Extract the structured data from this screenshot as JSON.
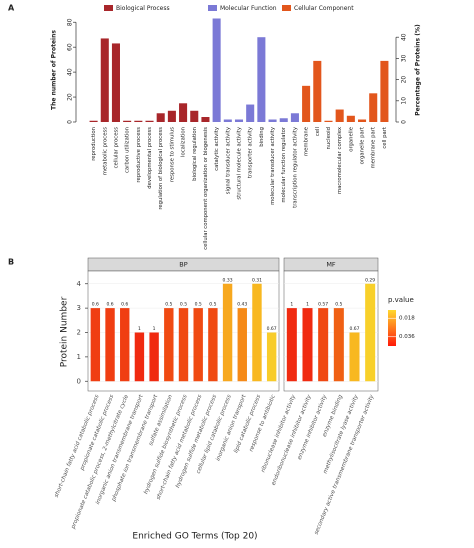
{
  "chart_data": [
    {
      "type": "bar",
      "label": "A",
      "ylabel": "The number of Proteins",
      "y2label": "Percentage of Proteins (%)",
      "categories": [
        "reproduction",
        "metabolic process",
        "cellular process",
        "carbon utilization",
        "reproductive process",
        "developmental process",
        "regulation of biological process",
        "response to stimulus",
        "localization",
        "biological regulation",
        "cellular component organization or biogenesis",
        "catalytic activity",
        "signal transducer activity",
        "structural molecule activity",
        "transporter activity",
        "binding",
        "molecular transducer activity",
        "molecular function regulator",
        "transcription regulator activity",
        "membrane",
        "cell",
        "nucleoid",
        "macromolecular complex",
        "organelle",
        "organelle part",
        "membrane part",
        "cell part"
      ],
      "series": [
        {
          "name": "Biological Process",
          "color": "#a8262a",
          "values": [
            1,
            67,
            63,
            1,
            1,
            1,
            7,
            9,
            15,
            9,
            4,
            null,
            null,
            null,
            null,
            null,
            null,
            null,
            null,
            null,
            null,
            null,
            null,
            null,
            null,
            null,
            null
          ]
        },
        {
          "name": "Molecular Function",
          "color": "#7b79d6",
          "values": [
            null,
            null,
            null,
            null,
            null,
            null,
            null,
            null,
            null,
            null,
            null,
            83,
            2,
            2,
            14,
            68,
            2,
            3,
            7,
            null,
            null,
            null,
            null,
            null,
            null,
            null,
            null
          ]
        },
        {
          "name": "Cellular Component",
          "color": "#e2561c",
          "values": [
            null,
            null,
            null,
            null,
            null,
            null,
            null,
            null,
            null,
            null,
            null,
            null,
            null,
            null,
            null,
            null,
            null,
            null,
            null,
            29,
            49,
            1,
            10,
            5,
            2,
            23,
            49
          ]
        }
      ],
      "ylim": [
        0,
        85
      ],
      "yticks": [
        0,
        20,
        40,
        60,
        80
      ],
      "y2lim": [
        0,
        50
      ],
      "y2ticks": [
        0,
        10,
        20,
        30,
        40
      ]
    },
    {
      "type": "faceted-bar",
      "label": "B",
      "ylabel": "Protein Number",
      "xlabel": "Enriched GO Terms (Top 20)",
      "ylim": [
        -0.4,
        4.4
      ],
      "yticks": [
        0,
        1,
        2,
        3,
        4
      ],
      "grid": true,
      "facets": [
        {
          "name": "BP",
          "categories": [
            "short-chain fatty acid catabolic process",
            "propionate catabolic process",
            "propionate catabolic process, 2-methylcitrate cycle",
            "inorganic anion transmembrane transport",
            "phosphate ion transmembrane transport",
            "sulfate assimilation",
            "hydrogen sulfide biosynthetic process",
            "short-chain fatty acid metabolic process",
            "hydrogen sulfide metabolic process",
            "cellular lipid catabolic process",
            "inorganic anion transport",
            "lipid catabolic process",
            "response to antibiotic"
          ],
          "values": [
            3,
            3,
            3,
            2,
            2,
            3,
            3,
            3,
            3,
            4,
            3,
            4,
            2
          ],
          "pvalues": [
            0.6,
            0.6,
            0.6,
            1,
            1,
            0.5,
            0.5,
            0.5,
            0.5,
            0.33,
            0.43,
            0.31,
            0.67
          ],
          "colors": [
            "#f03e12",
            "#f03e12",
            "#f03e12",
            "#f02a10",
            "#f02a10",
            "#f04a12",
            "#f04a12",
            "#f04a12",
            "#f04a12",
            "#f7a81e",
            "#f58a18",
            "#f8b820",
            "#f8cc2a"
          ]
        },
        {
          "name": "MF",
          "categories": [
            "ribonuclease inhibitor activity",
            "endoribonuclease inhibitor activity",
            "enzyme inhibitor activity",
            "enzyme binding",
            "methylisocitrate lyase activity",
            "secondary active transmembrane transporter activity"
          ],
          "values": [
            3,
            3,
            3,
            3,
            2,
            4
          ],
          "pvalues": [
            1,
            1,
            0.57,
            0.5,
            0.67,
            0.29
          ],
          "colors": [
            "#f02a10",
            "#f02a10",
            "#f04812",
            "#f06014",
            "#f8b820",
            "#f8d02a"
          ]
        }
      ],
      "legend": {
        "title": "p.value",
        "lim": [
          0.01,
          0.045
        ],
        "ticks": [
          0.018,
          0.036
        ],
        "colors": [
          "#ffd92f",
          "#ff1a0a"
        ]
      }
    }
  ]
}
